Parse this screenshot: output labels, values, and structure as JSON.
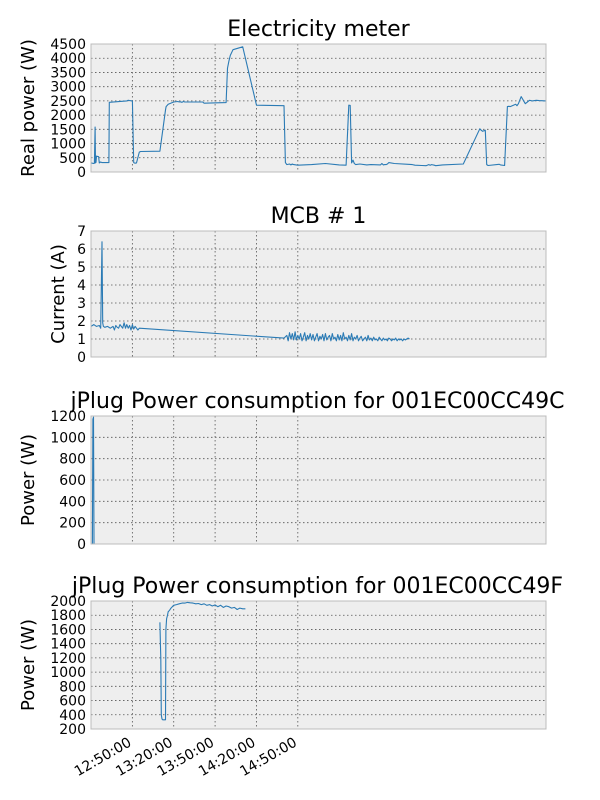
{
  "figure": {
    "x_tick_labels": [
      "12:50:00",
      "13:20:00",
      "13:50:00",
      "14:20:00",
      "14:50:00"
    ],
    "colors": {
      "line": "#2b7bb5",
      "axes_bg": "#eeeeee",
      "grid": "#555555",
      "spine": "#bcbcbc"
    }
  },
  "chart_data": [
    {
      "type": "line",
      "title": "Electricity meter",
      "ylabel": "Real power (W)",
      "xlabel": "",
      "ylim": [
        0,
        4500
      ],
      "yticks": [
        "0",
        "500",
        "1000",
        "1500",
        "2000",
        "2500",
        "3000",
        "3500",
        "4000",
        "4500"
      ],
      "grid": true,
      "x_unit": "minutes after 12:20:00",
      "series": [
        {
          "x": [
            0,
            2,
            2.5,
            3,
            3.3,
            3.6,
            4,
            5.5,
            6,
            7,
            8,
            13,
            13.3,
            26,
            27,
            28,
            30,
            31,
            32,
            33,
            35,
            36,
            50,
            54,
            54.5,
            56,
            60,
            63,
            64,
            64.5,
            66,
            67,
            68,
            80,
            81,
            82,
            98,
            99,
            100,
            101,
            103,
            110,
            120,
            140,
            141,
            142,
            144,
            145,
            146,
            147,
            150,
            160,
            170,
            180,
            185,
            187,
            188,
            189,
            190,
            191,
            192,
            195,
            200,
            203,
            210,
            211,
            212,
            213,
            214,
            215,
            216,
            220,
            230,
            233,
            235,
            240,
            243,
            245,
            246,
            247,
            249,
            250,
            255,
            270,
            282,
            283,
            284,
            286,
            287,
            288,
            296,
            297,
            300,
            302,
            303,
            304,
            308,
            309,
            310,
            312,
            315,
            318,
            320,
            323,
            325,
            330
          ],
          "y": [
            320,
            300,
            310,
            1580,
            320,
            340,
            560,
            540,
            320,
            350,
            330,
            330,
            2450,
            2500,
            2520,
            2510,
            2500,
            330,
            310,
            320,
            700,
            720,
            730,
            2180,
            2300,
            2380,
            2460,
            2480,
            2460,
            2470,
            2450,
            2480,
            2460,
            2460,
            2460,
            2420,
            2440,
            3650,
            3900,
            4100,
            4300,
            4400,
            2350,
            2330,
            330,
            260,
            280,
            250,
            280,
            260,
            240,
            260,
            300,
            250,
            240,
            2350,
            2340,
            320,
            420,
            300,
            260,
            280,
            250,
            260,
            250,
            300,
            250,
            260,
            260,
            280,
            330,
            300,
            270,
            260,
            240,
            230,
            220,
            260,
            240,
            260,
            240,
            220,
            250,
            280,
            1520,
            1470,
            1430,
            1470,
            260,
            230,
            270,
            250,
            230,
            2300,
            2310,
            2300,
            2380,
            2330,
            2400,
            2650,
            2400,
            2520,
            2500,
            2520,
            2510,
            2500
          ]
        }
      ]
    },
    {
      "type": "line",
      "title": "MCB # 1",
      "ylabel": "Current (A)",
      "xlabel": "",
      "ylim": [
        0,
        7
      ],
      "yticks": [
        "0",
        "1",
        "2",
        "3",
        "4",
        "5",
        "6",
        "7"
      ],
      "grid": true,
      "x_unit": "minutes after 12:20:00",
      "series": [
        {
          "x": [
            0,
            2,
            4,
            6,
            7,
            8,
            8.5,
            9,
            10,
            12,
            14,
            16,
            17,
            18,
            19,
            20,
            21,
            22,
            23,
            24,
            25,
            26,
            27,
            28,
            29,
            30,
            31,
            32,
            33,
            34,
            35,
            140,
            142,
            143,
            144,
            145,
            146,
            147,
            148,
            149,
            150,
            151,
            152,
            153,
            154,
            155,
            156,
            157,
            158,
            159,
            160,
            161,
            162,
            163,
            164,
            165,
            166,
            167,
            168,
            169,
            170,
            171,
            172,
            173,
            174,
            175,
            176,
            177,
            178,
            179,
            180,
            181,
            182,
            183,
            184,
            185,
            186,
            187,
            188,
            189,
            190,
            191,
            192,
            193,
            194,
            195,
            196,
            197,
            198,
            199,
            200,
            201,
            202,
            203,
            204,
            205,
            206,
            207,
            208,
            209,
            210,
            211,
            212,
            213,
            214,
            215,
            216,
            217,
            218,
            219,
            220,
            221,
            222,
            223,
            224,
            225,
            226,
            227,
            228,
            229,
            230,
            231
          ],
          "y": [
            1.7,
            1.8,
            1.7,
            1.75,
            1.6,
            6.4,
            1.9,
            1.7,
            1.65,
            1.7,
            1.6,
            1.7,
            1.5,
            1.75,
            1.65,
            1.6,
            1.8,
            1.7,
            1.6,
            1.9,
            1.6,
            1.8,
            1.6,
            1.75,
            1.5,
            1.8,
            1.55,
            1.7,
            1.6,
            1.5,
            1.6,
            1.05,
            1.2,
            0.9,
            1.35,
            1.0,
            1.3,
            0.95,
            1.4,
            0.95,
            1.2,
            1.0,
            1.3,
            0.9,
            1.1,
            1.35,
            0.9,
            1.2,
            1.0,
            1.3,
            0.95,
            1.25,
            0.9,
            1.1,
            1.3,
            0.9,
            1.15,
            1.0,
            1.25,
            0.9,
            1.3,
            0.95,
            1.1,
            1.2,
            0.9,
            1.3,
            1.0,
            1.1,
            0.9,
            1.25,
            0.95,
            1.2,
            0.9,
            1.35,
            1.0,
            1.1,
            0.9,
            1.2,
            0.95,
            1.3,
            0.9,
            1.1,
            1.0,
            1.2,
            0.9,
            1.05,
            1.15,
            0.9,
            1.0,
            1.1,
            0.9,
            1.2,
            0.95,
            1.05,
            0.9,
            1.1,
            0.95,
            1.0,
            0.9,
            1.1,
            1.0,
            0.9,
            1.05,
            0.95,
            1.0,
            0.9,
            1.05,
            1.0,
            0.9,
            1.0,
            0.95,
            1.05,
            0.9,
            1.0,
            0.95,
            1.0,
            0.9,
            1.0,
            0.95,
            1.0,
            1.05,
            1.0
          ]
        }
      ]
    },
    {
      "type": "line",
      "title": "jPlug Power consumption for 001EC00CC49C",
      "ylabel": "Power (W)",
      "xlabel": "",
      "ylim": [
        0,
        1200
      ],
      "yticks": [
        "0",
        "200",
        "400",
        "600",
        "800",
        "1000",
        "1200"
      ],
      "grid": true,
      "x_unit": "minutes after 12:20:00",
      "series": [
        {
          "x": [
            1,
            1.4,
            1.8,
            2.2,
            3,
            4,
            5,
            6,
            7,
            8
          ],
          "y": [
            0,
            1170,
            1190,
            0,
            0,
            0,
            0,
            0,
            0,
            0
          ]
        }
      ]
    },
    {
      "type": "line",
      "title": "jPlug Power consumption for 001EC00CC49F",
      "ylabel": "Power (W)",
      "xlabel": "",
      "ylim": [
        200,
        2000
      ],
      "yticks": [
        "200",
        "400",
        "600",
        "800",
        "1000",
        "1200",
        "1400",
        "1600",
        "1800",
        "2000"
      ],
      "grid": true,
      "x_unit": "minutes after 12:20:00",
      "series": [
        {
          "x": [
            50,
            50.3,
            50.6,
            51,
            51.5,
            52,
            53,
            54,
            54.3,
            54.8,
            55.5,
            56,
            56.5,
            57,
            58,
            59,
            60,
            62,
            64,
            66,
            68,
            70,
            72,
            74,
            76,
            78,
            80,
            82,
            84,
            86,
            88,
            90,
            92,
            94,
            96,
            98,
            100,
            102,
            104,
            106,
            107,
            108,
            110,
            112
          ],
          "y": [
            1700,
            1400,
            1200,
            400,
            340,
            330,
            330,
            330,
            1600,
            1750,
            1800,
            1850,
            1860,
            1870,
            1900,
            1920,
            1940,
            1950,
            1960,
            1970,
            1970,
            1980,
            1975,
            1970,
            1960,
            1965,
            1950,
            1960,
            1940,
            1950,
            1930,
            1945,
            1920,
            1940,
            1910,
            1930,
            1920,
            1900,
            1910,
            1880,
            1890,
            1900,
            1890,
            1890
          ]
        }
      ]
    }
  ]
}
